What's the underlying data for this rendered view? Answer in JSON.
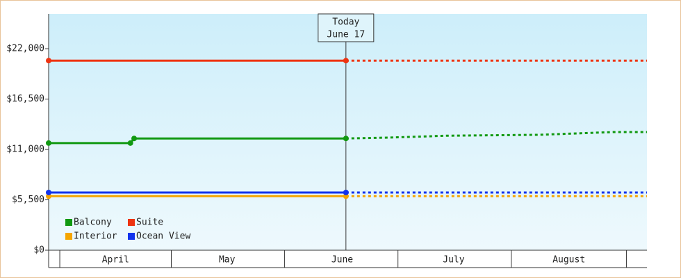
{
  "chart_data": {
    "type": "line",
    "x": [
      88,
      110,
      111,
      168,
      180,
      195,
      220,
      240,
      249
    ],
    "xlim": [
      88,
      249
    ],
    "xticks": [
      {
        "value": 106,
        "label": "April"
      },
      {
        "value": 136,
        "label": "May"
      },
      {
        "value": 167,
        "label": "June"
      },
      {
        "value": 197,
        "label": "July"
      },
      {
        "value": 228,
        "label": "August"
      }
    ],
    "ylim": [
      0,
      25800
    ],
    "yticks": [
      {
        "value": 0,
        "label": "$0"
      },
      {
        "value": 5500,
        "label": "$5,500"
      },
      {
        "value": 11000,
        "label": "$11,000"
      },
      {
        "value": 16500,
        "label": "$16,500"
      },
      {
        "value": 22000,
        "label": "$22,000"
      }
    ],
    "today": {
      "x": 168,
      "label": [
        "Today",
        "June 17"
      ]
    },
    "legend": "lower left",
    "series": [
      {
        "name": "Balcony",
        "color": "#119911",
        "values": [
          11700,
          11700,
          12200,
          12200,
          12300,
          12500,
          12600,
          12900,
          12900
        ]
      },
      {
        "name": "Suite",
        "color": "#ee3311",
        "values": [
          20700,
          20700,
          20700,
          20700,
          20700,
          20700,
          20700,
          20700,
          20700
        ]
      },
      {
        "name": "Interior",
        "color": "#f5a500",
        "values": [
          5900,
          5900,
          5900,
          5900,
          5900,
          5900,
          5900,
          5900,
          5900
        ]
      },
      {
        "name": "Ocean View",
        "color": "#1133ee",
        "values": [
          6300,
          6300,
          6300,
          6300,
          6300,
          6300,
          6300,
          6300,
          6300
        ]
      }
    ]
  }
}
